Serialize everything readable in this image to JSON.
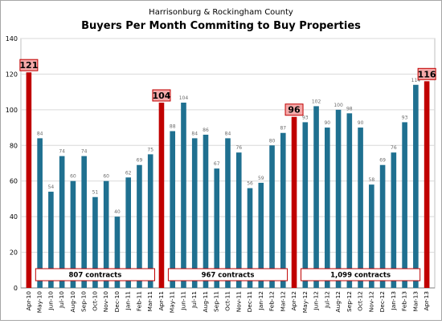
{
  "chart_data": {
    "type": "bar",
    "title": "Buyers Per Month Commiting  to Buy Properties",
    "subtitle": "Harrisonburg & Rockingham County",
    "xlabel": "",
    "ylabel": "",
    "ylim": [
      0,
      140
    ],
    "yticks": [
      0,
      20,
      40,
      60,
      80,
      100,
      120,
      140
    ],
    "grid": true,
    "categories": [
      "Apr-10",
      "May-10",
      "Jun-10",
      "Jul-10",
      "Aug-10",
      "Sep-10",
      "Oct-10",
      "Nov-10",
      "Dec-10",
      "Jan-11",
      "Feb-11",
      "Mar-11",
      "Apr-11",
      "May-11",
      "Jun-11",
      "Jul-11",
      "Aug-11",
      "Sep-11",
      "Oct-11",
      "Nov-11",
      "Dec-11",
      "Jan-12",
      "Feb-12",
      "Mar-12",
      "Apr-12",
      "May-12",
      "Jun-12",
      "Jul-12",
      "Aug-12",
      "Sep-12",
      "Oct-12",
      "Nov-12",
      "Dec-12",
      "Jan-13",
      "Feb-13",
      "Mar-13",
      "Apr-13"
    ],
    "values": [
      121,
      84,
      54,
      74,
      60,
      74,
      51,
      60,
      40,
      62,
      69,
      75,
      104,
      88,
      104,
      84,
      86,
      67,
      84,
      76,
      56,
      59,
      80,
      87,
      96,
      93,
      102,
      90,
      100,
      98,
      90,
      58,
      69,
      76,
      93,
      114,
      116
    ],
    "highlighted_categories": [
      "Apr-10",
      "Apr-11",
      "Apr-12",
      "Apr-13"
    ],
    "colors": {
      "normal": "#1f7090",
      "highlight": "#c00000"
    },
    "period_annotations": [
      {
        "label": "807 contracts",
        "from": "May-10",
        "to": "Mar-11"
      },
      {
        "label": "967 contracts",
        "from": "May-11",
        "to": "Mar-12"
      },
      {
        "label": "1,099 contracts",
        "from": "May-12",
        "to": "Mar-13"
      }
    ]
  }
}
